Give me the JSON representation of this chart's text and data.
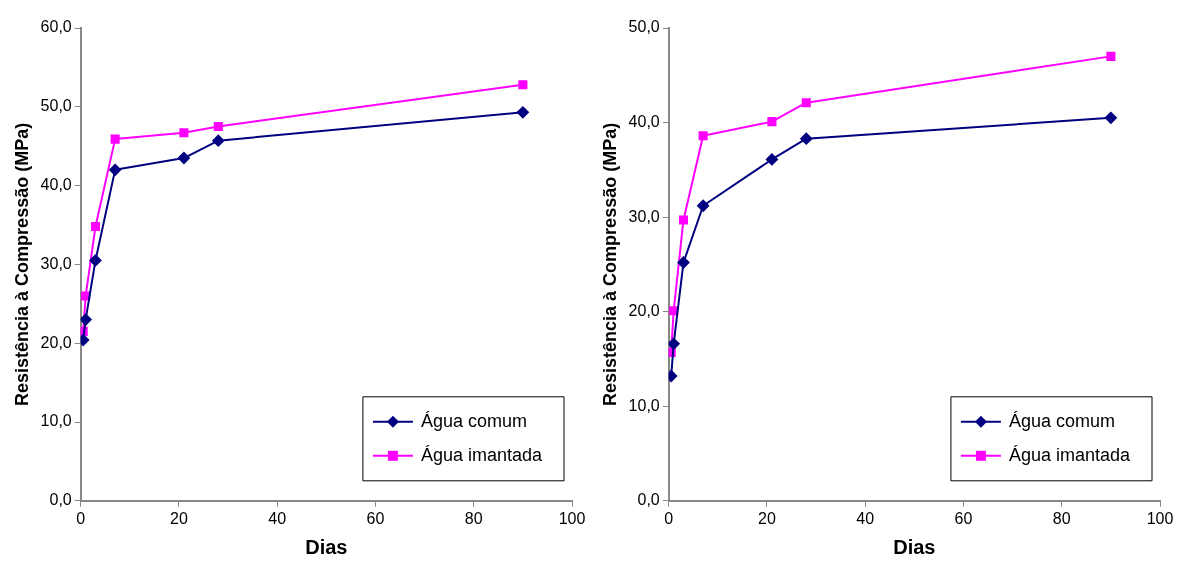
{
  "chart_data": [
    {
      "type": "line",
      "xlabel": "Dias",
      "ylabel": "Resistência à Compressão (MPa)",
      "x": [
        0.5,
        1,
        3,
        7,
        21,
        28,
        90
      ],
      "series": [
        {
          "name": "Água comum",
          "color": "#000080",
          "marker": "diamond",
          "values": [
            20.4,
            23.0,
            30.5,
            42.0,
            43.5,
            45.7,
            49.3
          ]
        },
        {
          "name": "Água imantada",
          "color": "#ff00ff",
          "marker": "square",
          "values": [
            21.5,
            26.0,
            34.8,
            45.9,
            46.7,
            47.5,
            52.8
          ]
        }
      ],
      "xlim": [
        0,
        100
      ],
      "xticks": [
        0,
        20,
        40,
        60,
        80,
        100
      ],
      "ylim": [
        0,
        60
      ],
      "yticks": [
        {
          "value": 0,
          "label": "0,0"
        },
        {
          "value": 10,
          "label": "10,0"
        },
        {
          "value": 20,
          "label": "20,0"
        },
        {
          "value": 30,
          "label": "30,0"
        },
        {
          "value": 40,
          "label": "40,0"
        },
        {
          "value": 50,
          "label": "50,0"
        },
        {
          "value": 60,
          "label": "60,0"
        }
      ],
      "grid": false,
      "legend": "bottom right",
      "line_style": "solid"
    },
    {
      "type": "line",
      "xlabel": "Dias",
      "ylabel": "Resistência à Compressão (MPa)",
      "x": [
        0.5,
        1,
        3,
        7,
        21,
        28,
        90
      ],
      "series": [
        {
          "name": "Água comum",
          "color": "#000080",
          "marker": "diamond",
          "values": [
            13.2,
            16.6,
            25.2,
            31.2,
            36.1,
            38.3,
            40.5
          ]
        },
        {
          "name": "Água imantada",
          "color": "#ff00ff",
          "marker": "square",
          "values": [
            15.7,
            20.1,
            29.7,
            38.6,
            40.1,
            42.1,
            47.0
          ]
        }
      ],
      "xlim": [
        0,
        100
      ],
      "xticks": [
        0,
        20,
        40,
        60,
        80,
        100
      ],
      "ylim": [
        0,
        50
      ],
      "yticks": [
        {
          "value": 0,
          "label": "0,0"
        },
        {
          "value": 10,
          "label": "10,0"
        },
        {
          "value": 20,
          "label": "20,0"
        },
        {
          "value": 30,
          "label": "30,0"
        },
        {
          "value": 40,
          "label": "40,0"
        },
        {
          "value": 50,
          "label": "50,0"
        }
      ],
      "grid": false,
      "legend": "bottom right",
      "line_style": "solid"
    }
  ]
}
